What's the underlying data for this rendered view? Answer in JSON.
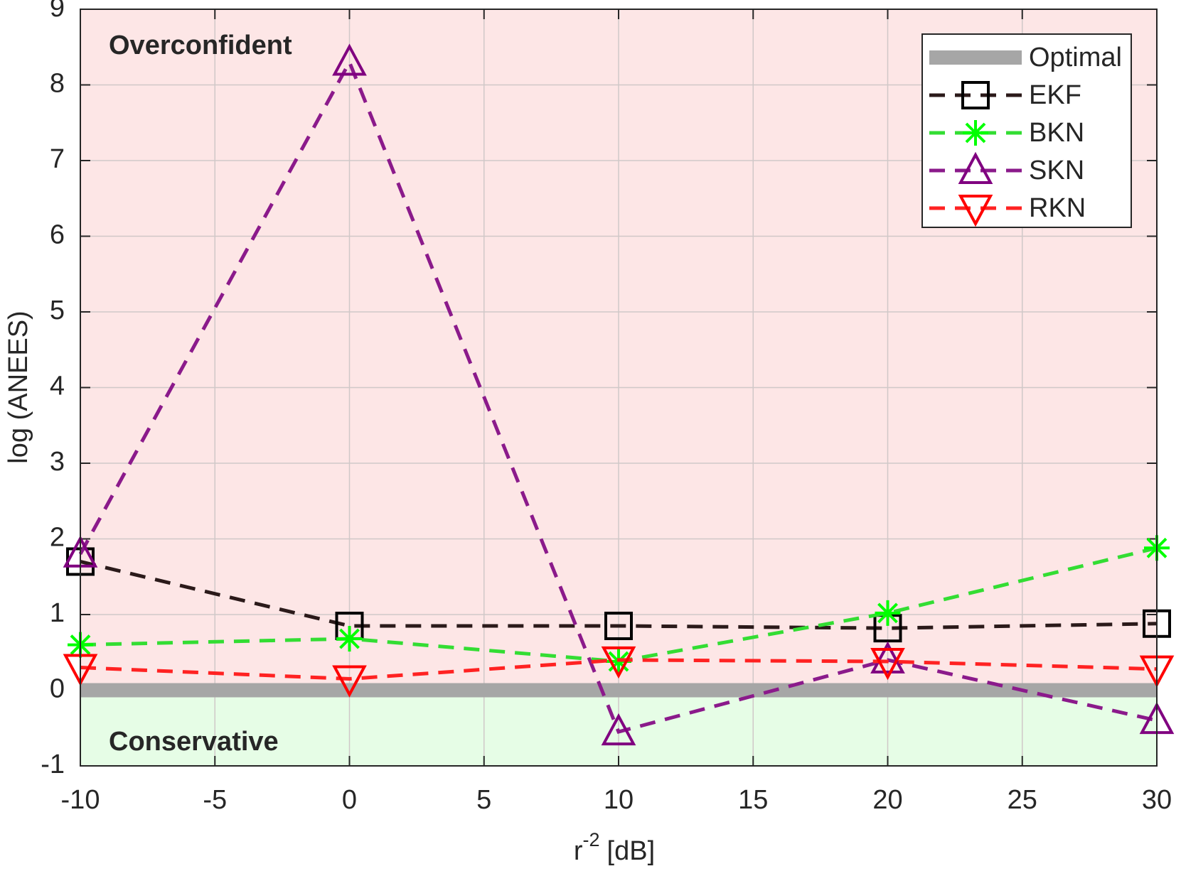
{
  "chart_data": {
    "type": "line",
    "xlabel": {
      "base": "r",
      "sup": "-2",
      "rest": "[dB]"
    },
    "ylabel": "log (ANEES)",
    "annotations": [
      {
        "text": "Overconfident",
        "color": "#ff0000"
      },
      {
        "text": "Conservative",
        "color": "#00ee00"
      }
    ],
    "x": [
      -10,
      0,
      10,
      20,
      30
    ],
    "series": [
      {
        "name": "Optimal",
        "color": "#a6a6a6",
        "marker": "none",
        "values": [
          0,
          0,
          0,
          0,
          0
        ]
      },
      {
        "name": "EKF",
        "color": "#000000",
        "line_color": "#2b1a1a",
        "marker": "square",
        "values": [
          1.7,
          0.85,
          0.85,
          0.82,
          0.88
        ]
      },
      {
        "name": "BKN",
        "color": "#00ff00",
        "line_color": "#33dd33",
        "marker": "asterisk",
        "values": [
          0.6,
          0.68,
          0.38,
          1.02,
          1.88
        ]
      },
      {
        "name": "SKN",
        "color": "#800080",
        "line_color": "#8b1a8b",
        "marker": "triangle-up",
        "values": [
          1.8,
          8.3,
          -0.55,
          0.4,
          -0.4
        ]
      },
      {
        "name": "RKN",
        "color": "#ff0000",
        "line_color": "#ff2222",
        "marker": "triangle-down",
        "values": [
          0.3,
          0.15,
          0.4,
          0.38,
          0.28
        ]
      }
    ],
    "xlim": [
      -10,
      30
    ],
    "xticks": [
      -10,
      -5,
      0,
      5,
      10,
      15,
      20,
      25,
      30
    ],
    "ylim": [
      -1,
      9
    ],
    "yticks": [
      -1,
      0,
      1,
      2,
      3,
      4,
      5,
      6,
      7,
      8,
      9
    ],
    "grid": true,
    "legend": "top-right"
  }
}
